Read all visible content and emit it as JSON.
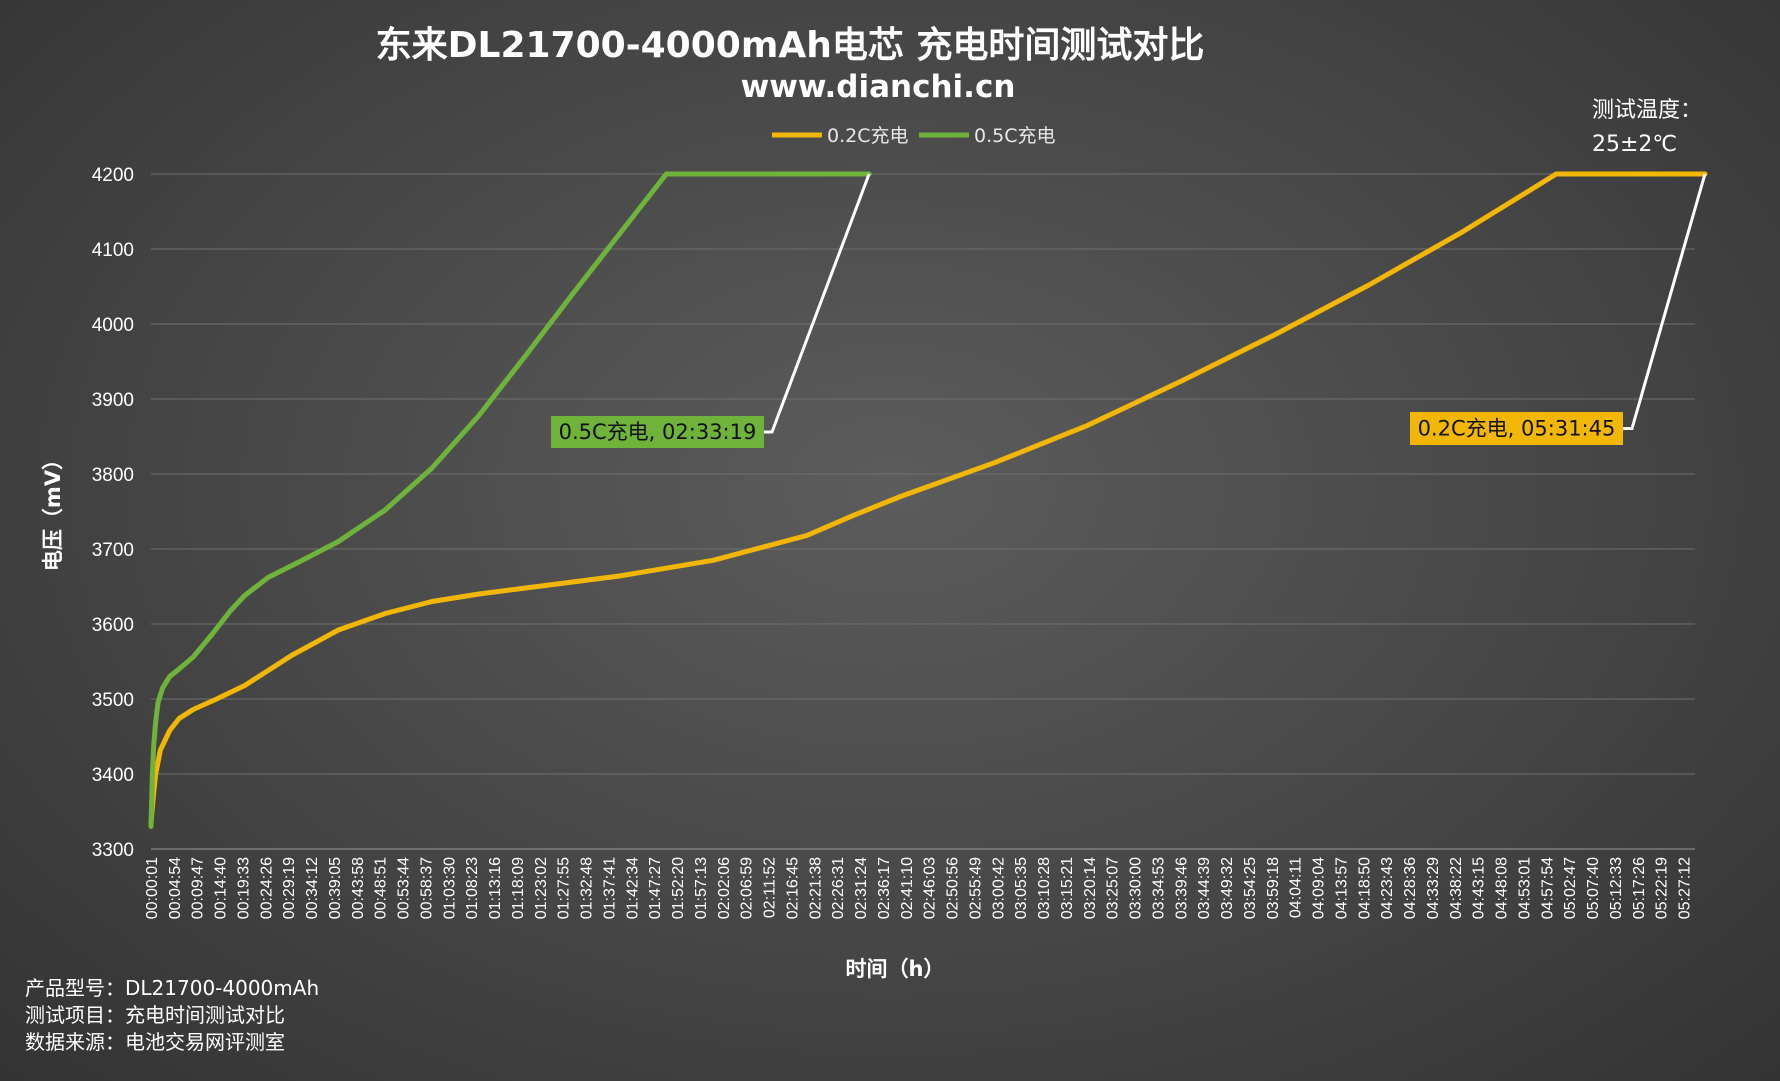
{
  "chart_data": {
    "type": "line",
    "title": "东来DL21700-4000mAh电芯 充电时间测试对比",
    "subtitle": "www.dianchi.cn",
    "xlabel": "时间（h）",
    "ylabel": "电压（mV）",
    "ylim": [
      3300,
      4200
    ],
    "y_ticks": [
      3300,
      3400,
      3500,
      3600,
      3700,
      3800,
      3900,
      4000,
      4100,
      4200
    ],
    "grid": true,
    "legend_position": "top-center",
    "x_tick_labels": [
      "00:00:01",
      "00:04:54",
      "00:09:47",
      "00:14:40",
      "00:19:33",
      "00:24:26",
      "00:29:19",
      "00:34:12",
      "00:39:05",
      "00:43:58",
      "00:48:51",
      "00:53:44",
      "00:58:37",
      "01:03:30",
      "01:08:23",
      "01:13:16",
      "01:18:09",
      "01:23:02",
      "01:27:55",
      "01:32:48",
      "01:37:41",
      "01:42:34",
      "01:47:27",
      "01:52:20",
      "01:57:13",
      "02:02:06",
      "02:06:59",
      "02:11:52",
      "02:16:45",
      "02:21:38",
      "02:26:31",
      "02:31:24",
      "02:36:17",
      "02:41:10",
      "02:46:03",
      "02:50:56",
      "02:55:49",
      "03:00:42",
      "03:05:35",
      "03:10:28",
      "03:15:21",
      "03:20:14",
      "03:25:07",
      "03:30:00",
      "03:34:53",
      "03:39:46",
      "03:44:39",
      "03:49:32",
      "03:54:25",
      "03:59:18",
      "04:04:11",
      "04:09:04",
      "04:13:57",
      "04:18:50",
      "04:23:43",
      "04:28:36",
      "04:33:29",
      "04:38:22",
      "04:43:15",
      "04:48:08",
      "04:53:01",
      "04:57:54",
      "05:02:47",
      "05:07:40",
      "05:12:33",
      "05:17:26",
      "05:22:19",
      "05:27:12"
    ],
    "series": [
      {
        "name": "0.2C充电",
        "color": "#f2b705",
        "x_minutes": [
          0,
          0.5,
          1,
          2,
          4,
          6,
          9,
          14,
          20,
          30,
          40,
          50,
          60,
          70,
          80,
          100,
          120,
          140,
          150,
          160,
          180,
          200,
          220,
          240,
          260,
          280,
          300,
          303,
          320,
          331.75
        ],
        "values": [
          3335,
          3370,
          3400,
          3432,
          3458,
          3474,
          3486,
          3500,
          3518,
          3558,
          3592,
          3614,
          3630,
          3640,
          3648,
          3664,
          3685,
          3718,
          3745,
          3770,
          3815,
          3865,
          3924,
          3986,
          4052,
          4123,
          4200,
          4200,
          4200,
          4200
        ]
      },
      {
        "name": "0.5C充电",
        "color": "#6fb33b",
        "x_minutes": [
          0,
          0.3,
          0.6,
          1,
          1.5,
          2.5,
          4,
          6,
          9,
          13,
          17,
          20,
          25,
          32,
          40,
          50,
          60,
          70,
          80,
          90,
          100,
          110,
          118,
          125,
          140,
          153.3
        ],
        "values": [
          3330,
          3400,
          3440,
          3470,
          3495,
          3515,
          3530,
          3540,
          3556,
          3586,
          3618,
          3638,
          3662,
          3684,
          3710,
          3752,
          3808,
          3878,
          3958,
          4040,
          4120,
          4200,
          4200,
          4200,
          4200,
          4200
        ]
      }
    ],
    "annotations": [
      {
        "series": "0.5C充电",
        "label": "0.5C充电, 02:33:19",
        "color": "#6fb33b"
      },
      {
        "series": "0.2C充电",
        "label": "0.2C充电, 05:31:45",
        "color": "#f2b705"
      }
    ]
  },
  "test_temperature": {
    "label": "测试温度：",
    "value": "25±2℃"
  },
  "info": {
    "model": "产品型号：DL21700-4000mAh",
    "project": "测试项目：充电时间测试对比",
    "source": "数据来源：电池交易网评测室"
  }
}
